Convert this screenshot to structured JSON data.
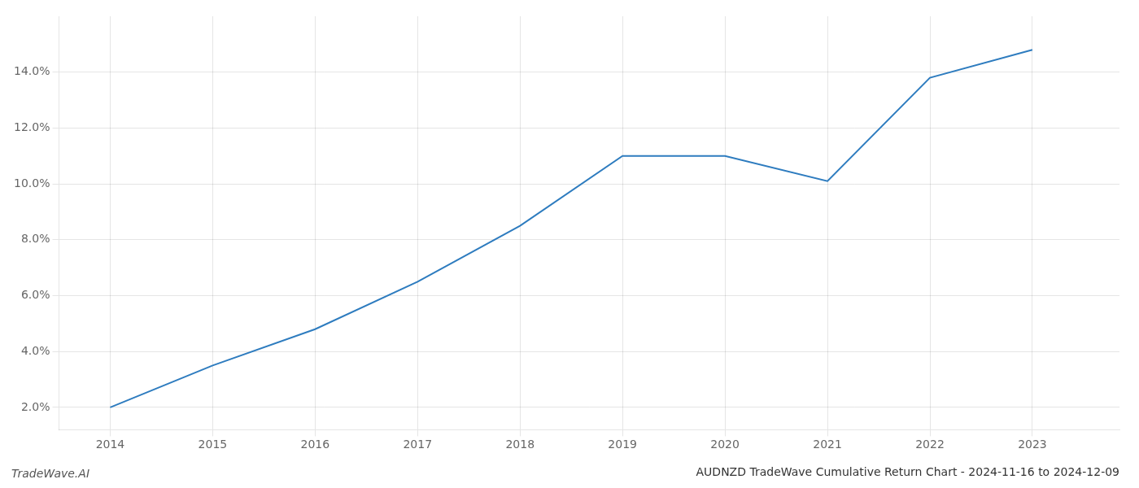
{
  "chart_data": {
    "type": "line",
    "title": "AUDNZD TradeWave Cumulative Return Chart - 2024-11-16 to 2024-12-09",
    "annotations": [
      "TradeWave.AI"
    ],
    "x": [
      2014,
      2015,
      2016,
      2017,
      2018,
      2019,
      2020,
      2021,
      2022,
      2023
    ],
    "values": [
      0.02,
      0.035,
      0.048,
      0.065,
      0.085,
      0.11,
      0.11,
      0.101,
      0.138,
      0.148
    ],
    "color": "#2e7cbf",
    "xlim": [
      2013.5,
      2023.85
    ],
    "xticks": [
      2014,
      2015,
      2016,
      2017,
      2018,
      2019,
      2020,
      2021,
      2022,
      2023
    ],
    "ylim": [
      0.012,
      0.16
    ],
    "yticks": [
      {
        "value": 0.02,
        "label": "2.0%"
      },
      {
        "value": 0.04,
        "label": "4.0%"
      },
      {
        "value": 0.06,
        "label": "6.0%"
      },
      {
        "value": 0.08,
        "label": "8.0%"
      },
      {
        "value": 0.1,
        "label": "10.0%"
      },
      {
        "value": 0.12,
        "label": "12.0%"
      },
      {
        "value": 0.14,
        "label": "14.0%"
      }
    ],
    "grid": true
  }
}
